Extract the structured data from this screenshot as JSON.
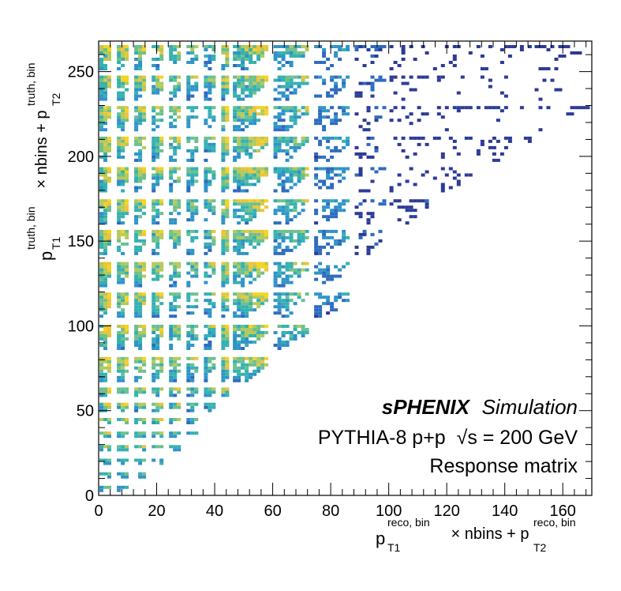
{
  "chart_data": {
    "type": "heatmap",
    "title": "",
    "xlabel": {
      "main": "p",
      "sub": "T1",
      "sup": "reco, bin",
      "middle": " × nbins + p",
      "sub2": "T2",
      "sup2": "reco, bin"
    },
    "ylabel": {
      "main": "p",
      "sub": "T1",
      "sup": "truth, bin",
      "middle": " × nbins + p",
      "sub2": "T2",
      "sup2": "truth, bin"
    },
    "xlim": [
      0,
      170
    ],
    "ylim": [
      0,
      268
    ],
    "x_ticks": [
      0,
      20,
      40,
      60,
      80,
      100,
      120,
      140,
      160
    ],
    "y_ticks": [
      0,
      50,
      100,
      150,
      200,
      250
    ],
    "x_tick_labels": [
      "0",
      "20",
      "40",
      "60",
      "80",
      "100",
      "120",
      "140",
      "160"
    ],
    "y_tick_labels": [
      "0",
      "50",
      "100",
      "150",
      "200",
      "250"
    ],
    "block_edges": [
      0,
      6,
      12,
      18,
      24,
      30,
      36,
      42,
      46,
      60,
      74,
      88,
      100,
      115,
      130,
      150,
      170
    ],
    "truth_block_edges": [
      0,
      8,
      16,
      24,
      32,
      40,
      48,
      57,
      66,
      84,
      103,
      122,
      140,
      159,
      177,
      196,
      214,
      232,
      250,
      268
    ],
    "fill_levels": [
      [
        1.0,
        0.9,
        0.8,
        0.7,
        0.6,
        0.5,
        0.45,
        0.85,
        0.7,
        0.5,
        0.3,
        0.15,
        0.08,
        0.05,
        0.03,
        0.02
      ],
      [
        0.55,
        0.6,
        0.65,
        0.68,
        0.7,
        0.7,
        0.72,
        0.85,
        0.72,
        0.55,
        0.35,
        0.18,
        0.1,
        0.06,
        0.04,
        0.02
      ]
    ],
    "colorscale": [
      "#2c3b97",
      "#2d6bbf",
      "#2f93c8",
      "#35b1b0",
      "#6cc08e",
      "#b4c95a",
      "#e9c53a",
      "#f6d31f"
    ],
    "annotations": [
      {
        "text_bold": "sPHENIX",
        "text_italic": "Simulation"
      },
      {
        "text": "PYTHIA-8 p+p  √s = 200 GeV"
      },
      {
        "text": "Response matrix"
      }
    ]
  }
}
